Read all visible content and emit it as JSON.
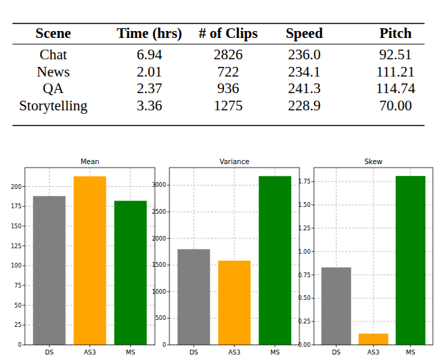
{
  "table": {
    "columns": [
      "Scene",
      "Time (hrs)",
      "# of Clips",
      "Speed",
      "Pitch"
    ],
    "rows": [
      [
        "Chat",
        "6.94",
        "2826",
        "236.0",
        "92.51"
      ],
      [
        "News",
        "2.01",
        "722",
        "234.1",
        "111.21"
      ],
      [
        "QA",
        "2.37",
        "936",
        "241.3",
        "114.74"
      ],
      [
        "Storytelling",
        "3.36",
        "1275",
        "228.9",
        "70.00"
      ]
    ]
  },
  "chart_data": [
    {
      "type": "bar",
      "title": "Mean",
      "categories": [
        "DS",
        "AS3",
        "MS"
      ],
      "values": [
        188,
        213,
        182
      ],
      "colors": [
        "gray",
        "orange",
        "green"
      ],
      "ylim": [
        0,
        224
      ],
      "yticks": [
        0,
        25,
        50,
        75,
        100,
        125,
        150,
        175,
        200
      ],
      "grid": true
    },
    {
      "type": "bar",
      "title": "Variance",
      "categories": [
        "DS",
        "AS3",
        "MS"
      ],
      "values": [
        1797,
        1582,
        3170
      ],
      "colors": [
        "gray",
        "orange",
        "green"
      ],
      "ylim": [
        0,
        3330
      ],
      "yticks": [
        0,
        500,
        1000,
        1500,
        2000,
        2500,
        3000
      ],
      "grid": true
    },
    {
      "type": "bar",
      "title": "Skew",
      "categories": [
        "DS",
        "AS3",
        "MS"
      ],
      "values": [
        0.83,
        0.12,
        1.81
      ],
      "colors": [
        "gray",
        "orange",
        "green"
      ],
      "ylim": [
        0,
        1.9
      ],
      "yticks": [
        {
          "value": 0,
          "label": "0.00"
        },
        {
          "value": 0.25,
          "label": "0.25"
        },
        {
          "value": 0.5,
          "label": "0.50"
        },
        {
          "value": 0.75,
          "label": "0.75"
        },
        {
          "value": 1,
          "label": "1.00"
        },
        {
          "value": 1.25,
          "label": "1.25"
        },
        {
          "value": 1.5,
          "label": "1.50"
        },
        {
          "value": 1.75,
          "label": "1.75"
        }
      ],
      "grid": true
    }
  ]
}
